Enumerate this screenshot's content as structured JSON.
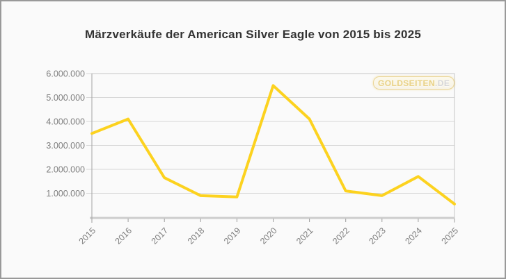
{
  "title": "Märzverkäufe der American Silver Eagle von 2015 bis 2025",
  "watermark": {
    "brand": "GOLDSEITEN",
    "suffix": ".DE"
  },
  "colors": {
    "line": "#FCD21F",
    "grid": "#D7D7D7",
    "plot_border": "#C7C7C7",
    "bottom_axis": "#CCCCCC",
    "left_axis": "#A3A3A3",
    "tick": "#9C9C9C",
    "axis_label": "#7E7E7E",
    "title": "#333333",
    "background": "#FAFAFA"
  },
  "chart_data": {
    "type": "line",
    "title": "Märzverkäufe der American Silver Eagle von 2015 bis 2025",
    "categories": [
      "2015",
      "2016",
      "2017",
      "2018",
      "2019",
      "2020",
      "2021",
      "2022",
      "2023",
      "2024",
      "2025"
    ],
    "values": [
      3500000,
      4100000,
      1650000,
      900000,
      850000,
      5500000,
      4100000,
      1100000,
      900000,
      1700000,
      550000
    ],
    "xlabel": "",
    "ylabel": "",
    "ylim": [
      0,
      6000000
    ],
    "y_ticks": [
      1000000,
      2000000,
      3000000,
      4000000,
      5000000,
      6000000
    ],
    "y_tick_labels": [
      "1.000.000",
      "2.000.000",
      "3.000.000",
      "4.000.000",
      "5.000.000",
      "6.000.000"
    ],
    "grid": true,
    "legend": false,
    "line_color": "#FCD21F"
  }
}
